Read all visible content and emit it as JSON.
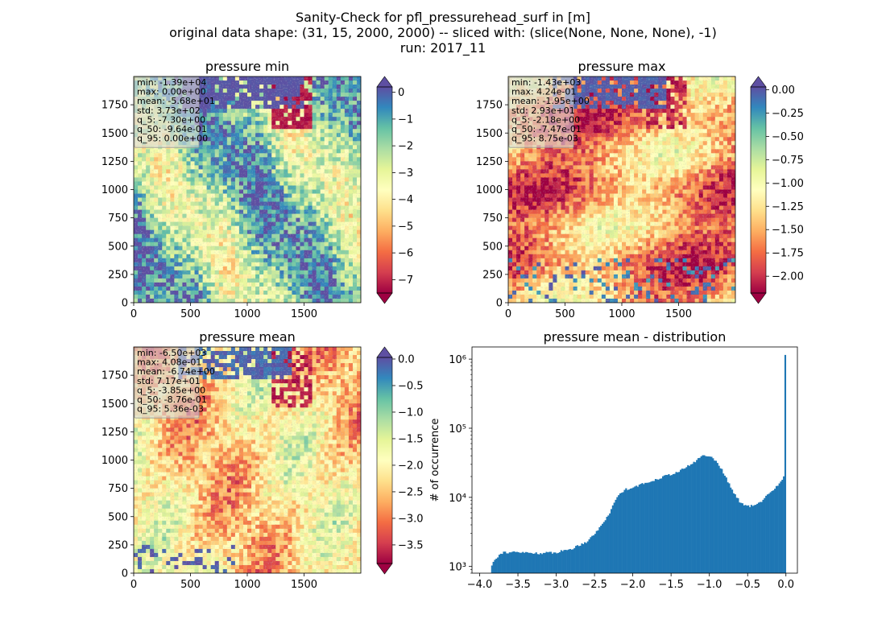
{
  "figure": {
    "title_lines": [
      "Sanity-Check for pfl_pressurehead_surf in [m]",
      "original data shape: (31, 15, 2000, 2000) -- sliced with: (slice(None, None, None), -1)",
      "run: 2017_11"
    ]
  },
  "colormap": {
    "name": "Spectral",
    "stops": [
      "#9e0142",
      "#d53e4f",
      "#f46d43",
      "#fdae61",
      "#fee08b",
      "#ffffbf",
      "#e6f598",
      "#abdda4",
      "#66c2a5",
      "#3288bd",
      "#5e4fa2"
    ]
  },
  "chart_data": [
    {
      "type": "heatmap",
      "title": "pressure min",
      "x_ticks": [
        0,
        500,
        1000,
        1500
      ],
      "y_ticks": [
        0,
        250,
        500,
        750,
        1000,
        1250,
        1500,
        1750
      ],
      "xlim": [
        0,
        2000
      ],
      "ylim": [
        0,
        2000
      ],
      "colorbar": {
        "vmin": -7.5,
        "vmax": 0.2,
        "ticks": [
          "0",
          "−1",
          "−2",
          "−3",
          "−4",
          "−5",
          "−6",
          "−7"
        ],
        "tick_values": [
          0,
          -1,
          -2,
          -3,
          -4,
          -5,
          -6,
          -7
        ],
        "extend": "both"
      },
      "stats": [
        "min: -1.39e+04",
        "max: 0.00e+00",
        "mean: -5.68e+01",
        "std: 3.73e+02",
        "q_5: -7.30e+00",
        "q_50: -9.64e-01",
        "q_95: 0.00e+00"
      ]
    },
    {
      "type": "heatmap",
      "title": "pressure max",
      "x_ticks": [
        0,
        500,
        1000,
        1500
      ],
      "y_ticks": [
        0,
        250,
        500,
        750,
        1000,
        1250,
        1500,
        1750
      ],
      "xlim": [
        0,
        2000
      ],
      "ylim": [
        0,
        2000
      ],
      "colorbar": {
        "vmin": -2.18,
        "vmax": 0.03,
        "ticks": [
          "0.00",
          "−0.25",
          "−0.50",
          "−0.75",
          "−1.00",
          "−1.25",
          "−1.50",
          "−1.75",
          "−2.00"
        ],
        "tick_values": [
          0,
          -0.25,
          -0.5,
          -0.75,
          -1,
          -1.25,
          -1.5,
          -1.75,
          -2
        ],
        "extend": "both"
      },
      "stats": [
        "min: -1.43e+03",
        "max: 4.24e-01",
        "mean: -1.95e+00",
        "std: 2.93e+01",
        "q_5: -2.18e+00",
        "q_50: -7.47e-01",
        "q_95: 8.75e-03"
      ]
    },
    {
      "type": "heatmap",
      "title": "pressure mean",
      "x_ticks": [
        0,
        500,
        1000,
        1500
      ],
      "y_ticks": [
        0,
        250,
        500,
        750,
        1000,
        1250,
        1500,
        1750
      ],
      "xlim": [
        0,
        2000
      ],
      "ylim": [
        0,
        2000
      ],
      "colorbar": {
        "vmin": -3.85,
        "vmax": 0.03,
        "ticks": [
          "0.0",
          "−0.5",
          "−1.0",
          "−1.5",
          "−2.0",
          "−2.5",
          "−3.0",
          "−3.5"
        ],
        "tick_values": [
          0,
          -0.5,
          -1,
          -1.5,
          -2,
          -2.5,
          -3,
          -3.5
        ],
        "extend": "both"
      },
      "stats": [
        "min: -6.50e+03",
        "max: 4.08e-01",
        "mean: -6.74e+00",
        "std: 7.17e+01",
        "q_5: -3.85e+00",
        "q_50: -8.76e-01",
        "q_95: 5.36e-03"
      ]
    },
    {
      "type": "bar",
      "title": "pressure mean - distribution",
      "xlabel": "",
      "ylabel": "# of occurrence",
      "xlim": [
        -4.1,
        0.15
      ],
      "ylim": [
        800,
        1500000
      ],
      "y_scale": "log",
      "x_ticks": [
        "−4.0",
        "−3.5",
        "−3.0",
        "−2.5",
        "−2.0",
        "−1.5",
        "−1.0",
        "−0.5",
        "0.0"
      ],
      "x_tick_values": [
        -4,
        -3.5,
        -3,
        -2.5,
        -2,
        -1.5,
        -1,
        -0.5,
        0
      ],
      "y_ticks": [
        "10³",
        "10⁴",
        "10⁵",
        "10⁶"
      ],
      "y_tick_values": [
        1000,
        10000,
        100000,
        1000000
      ],
      "bar_color": "#1f77b4",
      "x_anchors": [
        -3.85,
        -3.8,
        -3.7,
        -3.5,
        -3.2,
        -3.0,
        -2.8,
        -2.6,
        -2.45,
        -2.3,
        -2.2,
        -2.1,
        -2.0,
        -1.8,
        -1.6,
        -1.4,
        -1.2,
        -1.1,
        -1.0,
        -0.9,
        -0.8,
        -0.7,
        -0.6,
        -0.5,
        -0.4,
        -0.3,
        -0.2,
        -0.1,
        -0.03,
        -0.015,
        0.0
      ],
      "y_anchors": [
        1000,
        1300,
        1600,
        1600,
        1550,
        1600,
        1800,
        2300,
        3400,
        6000,
        10500,
        13000,
        14000,
        16500,
        20000,
        23500,
        32000,
        40000,
        40000,
        33000,
        21000,
        12500,
        8500,
        7400,
        7600,
        9200,
        12000,
        15000,
        20000,
        30000,
        1150000
      ]
    }
  ]
}
